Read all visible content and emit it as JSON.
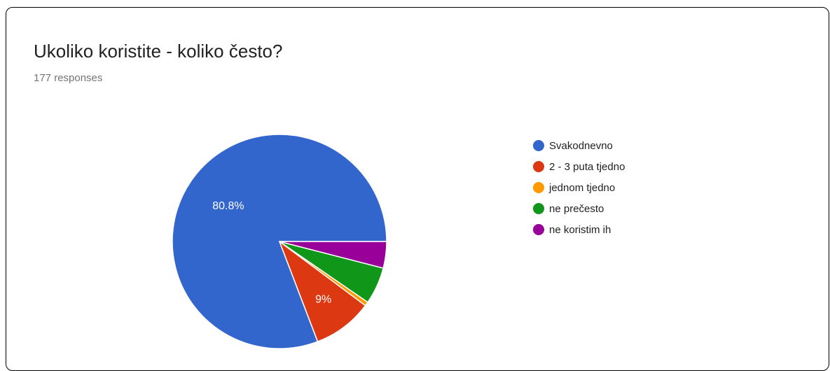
{
  "chart_data": {
    "type": "pie",
    "title": "Ukoliko koristite - koliko često?",
    "subtitle": "177 responses",
    "categories": [
      "Svakodnevno",
      "2 - 3 puta tjedno",
      "jednom tjedno",
      "ne prečesto",
      "ne koristim ih"
    ],
    "values": [
      80.8,
      9.0,
      0.6,
      5.6,
      4.0
    ],
    "data_labels": [
      "80.8%",
      "9%",
      "",
      "",
      ""
    ],
    "colors": [
      "#3366cc",
      "#dc3912",
      "#ff9900",
      "#109618",
      "#990099"
    ],
    "legend_position": "right"
  }
}
